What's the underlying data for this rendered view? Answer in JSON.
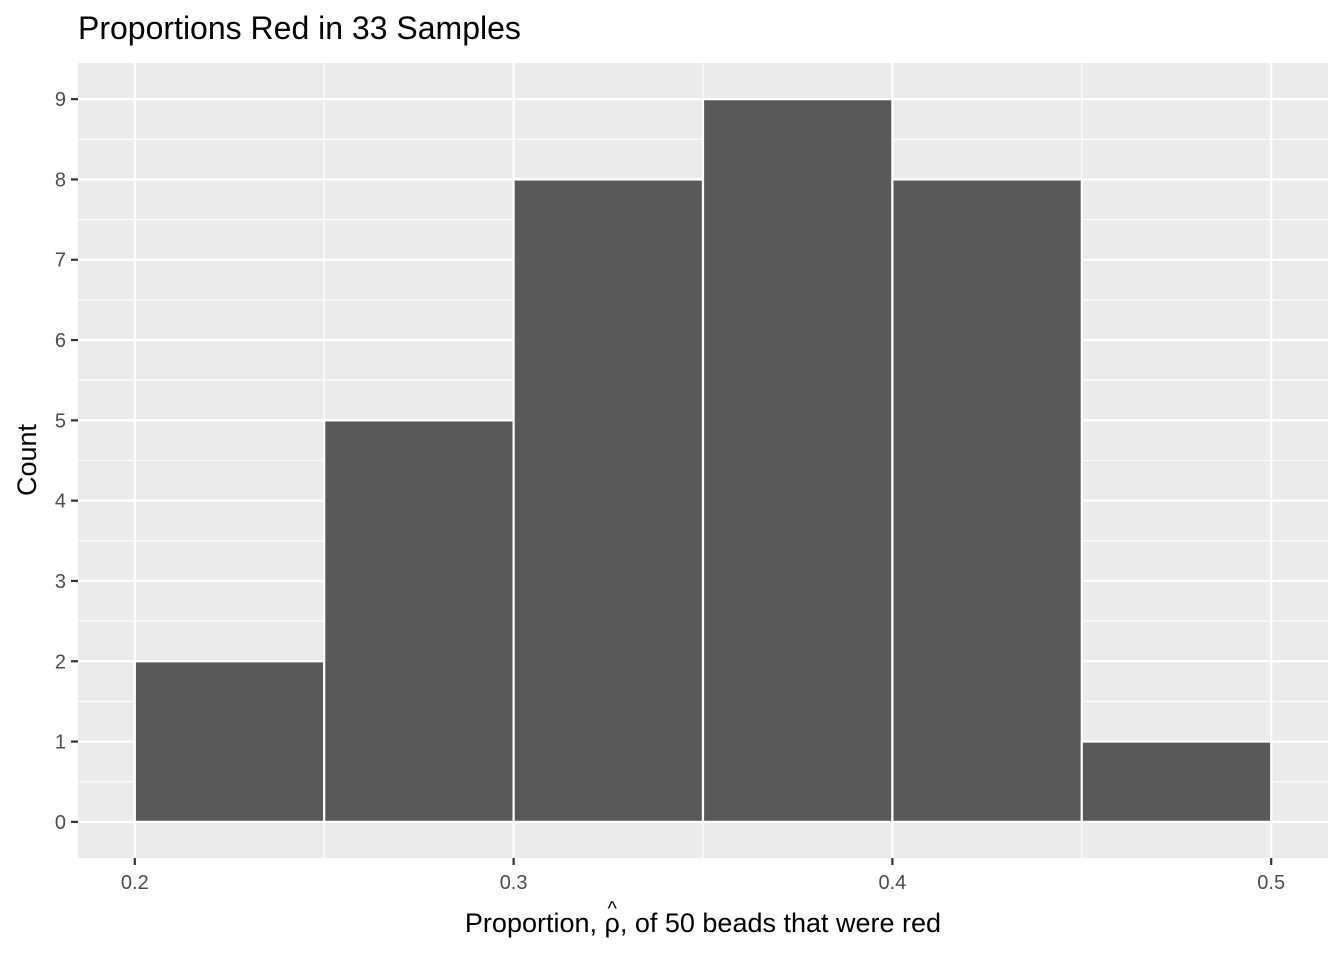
{
  "chart_data": {
    "type": "bar",
    "title": "Proportions Red in 33 Samples",
    "xlabel": {
      "prefix": "Proportion, ",
      "symbol": "ρ",
      "accent": "^",
      "suffix": ", of 50 beads that were red"
    },
    "ylabel": "Count",
    "bins": [
      {
        "start": 0.2,
        "end": 0.25,
        "count": 2
      },
      {
        "start": 0.25,
        "end": 0.3,
        "count": 5
      },
      {
        "start": 0.3,
        "end": 0.35,
        "count": 8
      },
      {
        "start": 0.35,
        "end": 0.4,
        "count": 9
      },
      {
        "start": 0.4,
        "end": 0.45,
        "count": 8
      },
      {
        "start": 0.45,
        "end": 0.5,
        "count": 1
      }
    ],
    "xlim": [
      0.185,
      0.515
    ],
    "ylim": [
      -0.45,
      9.45
    ],
    "x_ticks": [
      0.2,
      0.3,
      0.4,
      0.5
    ],
    "x_tick_labels": [
      "0.2",
      "0.3",
      "0.4",
      "0.5"
    ],
    "y_ticks": [
      0,
      1,
      2,
      3,
      4,
      5,
      6,
      7,
      8,
      9
    ],
    "y_tick_labels": [
      "0",
      "1",
      "2",
      "3",
      "4",
      "5",
      "6",
      "7",
      "8",
      "9"
    ],
    "grid": true,
    "colors": {
      "panel": "#ebebeb",
      "grid": "#ffffff",
      "bar_fill": "#595959",
      "bar_outline": "#ffffff",
      "tick": "#333333"
    }
  }
}
